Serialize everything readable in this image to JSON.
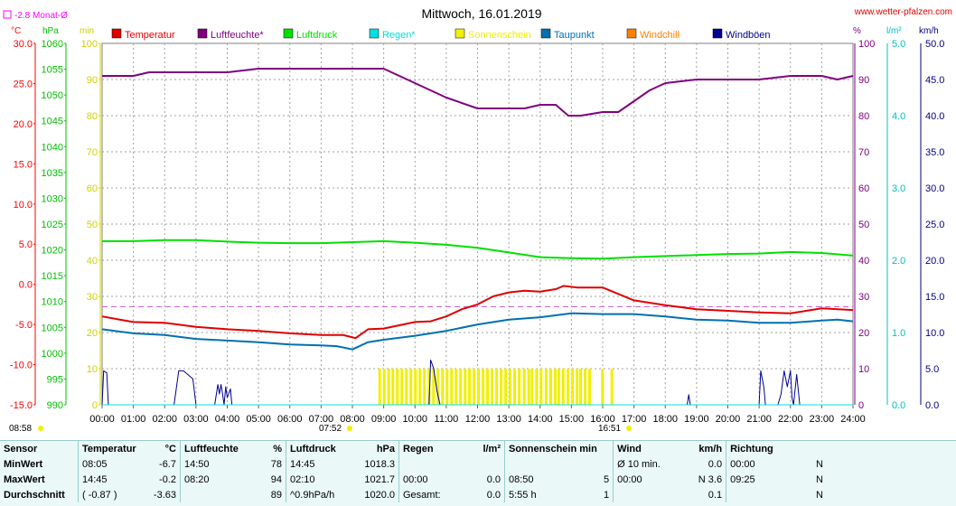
{
  "header": {
    "title": "Mittwoch, 16.01.2019",
    "site": "www.wetter-pfalzen.com",
    "monthly_avg": "-2.8 Monat-Ø",
    "left_units": [
      "°C",
      "hPa",
      "min"
    ],
    "right_units": [
      "%",
      "l/m²",
      "km/h"
    ],
    "sunrise_left": "08:58",
    "sunrise_marker": "07:52",
    "sunset_marker": "16:51"
  },
  "legend": [
    {
      "label": "Temperatur",
      "color": "#e00000"
    },
    {
      "label": "Luftfeuchte*",
      "color": "#800080"
    },
    {
      "label": "Luftdruck",
      "color": "#00e000"
    },
    {
      "label": "Regen*",
      "color": "#00e0e0"
    },
    {
      "label": "Sonnenschein",
      "color": "#f0f000"
    },
    {
      "label": "Taupunkt",
      "color": "#0070b0"
    },
    {
      "label": "Windchill",
      "color": "#ff8000"
    },
    {
      "label": "Windböen",
      "color": "#000090"
    }
  ],
  "chart_data": {
    "type": "line",
    "title": "Mittwoch, 16.01.2019",
    "x_ticks": [
      "00:00",
      "01:00",
      "02:00",
      "03:00",
      "04:00",
      "05:00",
      "06:00",
      "07:00",
      "08:00",
      "09:00",
      "10:00",
      "11:00",
      "12:00",
      "13:00",
      "14:00",
      "15:00",
      "16:00",
      "17:00",
      "18:00",
      "19:00",
      "20:00",
      "21:00",
      "22:00",
      "23:00",
      "24:00"
    ],
    "axes": {
      "temp": {
        "unit": "°C",
        "range": [
          -15,
          30
        ],
        "ticks": [
          "30.0",
          "25.0",
          "20.0",
          "15.0",
          "10.0",
          "5.0",
          "0.0",
          "-5.0",
          "-10.0",
          "-15.0"
        ],
        "color": "#ff0000"
      },
      "pressure": {
        "unit": "hPa",
        "range": [
          990,
          1060
        ],
        "ticks": [
          "1060",
          "1055",
          "1050",
          "1045",
          "1040",
          "1035",
          "1030",
          "1025",
          "1020",
          "1015",
          "1010",
          "1005",
          "1000",
          "995",
          "990"
        ],
        "color": "#00c000"
      },
      "sun": {
        "unit": "min",
        "range": [
          0,
          100
        ],
        "ticks": [
          "100",
          "90",
          "80",
          "70",
          "60",
          "50",
          "40",
          "30",
          "20",
          "10",
          "0"
        ],
        "color": "#d0d000"
      },
      "humidity": {
        "unit": "%",
        "range": [
          0,
          100
        ],
        "ticks": [
          "100",
          "90",
          "80",
          "70",
          "60",
          "50",
          "40",
          "30",
          "20",
          "10",
          "0"
        ],
        "color": "#800080"
      },
      "rain": {
        "unit": "l/m²",
        "range": [
          0,
          5
        ],
        "ticks": [
          "5.0",
          "4.0",
          "3.0",
          "2.0",
          "1.0",
          "0.0"
        ],
        "color": "#00c0c0"
      },
      "wind": {
        "unit": "km/h",
        "range": [
          0,
          50
        ],
        "ticks": [
          "50.0",
          "45.0",
          "40.0",
          "35.0",
          "30.0",
          "25.0",
          "20.0",
          "15.0",
          "10.0",
          "5.0",
          "0.0"
        ],
        "color": "#000080"
      }
    },
    "monthly_avg_temp": -2.8,
    "series": [
      {
        "name": "Luftfeuchte*",
        "axis": "humidity",
        "color": "#800080",
        "x": [
          0,
          1,
          1.5,
          2,
          3,
          4,
          5,
          6,
          7,
          8,
          9,
          10,
          10.5,
          11,
          12,
          13,
          13.5,
          14,
          14.5,
          14.9,
          15.3,
          16,
          16.5,
          17,
          17.5,
          18,
          19,
          20,
          21,
          22,
          23,
          23.5,
          24
        ],
        "y": [
          91,
          91,
          92,
          92,
          92,
          92,
          93,
          93,
          93,
          93,
          93,
          89,
          87,
          85,
          82,
          82,
          82,
          83,
          83,
          80,
          80,
          81,
          81,
          84,
          87,
          89,
          90,
          90,
          90,
          91,
          91,
          90,
          91
        ]
      },
      {
        "name": "Luftdruck",
        "axis": "pressure",
        "color": "#00e000",
        "x": [
          0,
          1,
          2,
          3,
          4,
          5,
          6,
          7,
          8,
          9,
          10,
          11,
          12,
          13,
          14,
          15,
          16,
          17,
          18,
          19,
          20,
          21,
          22,
          23,
          24
        ],
        "y": [
          1021.7,
          1021.7,
          1021.9,
          1021.9,
          1021.6,
          1021.4,
          1021.3,
          1021.3,
          1021.5,
          1021.7,
          1021.4,
          1021.0,
          1020.4,
          1019.5,
          1018.6,
          1018.4,
          1018.3,
          1018.6,
          1018.8,
          1019.0,
          1019.2,
          1019.3,
          1019.6,
          1019.4,
          1018.9
        ]
      },
      {
        "name": "Temperatur",
        "axis": "temp",
        "color": "#e00000",
        "x": [
          0,
          1,
          2,
          3,
          4,
          5,
          6,
          7,
          7.7,
          8.1,
          8.5,
          9,
          9.5,
          10,
          10.5,
          11,
          11.5,
          12,
          12.5,
          13,
          13.5,
          14,
          14.5,
          14.75,
          15.2,
          16,
          16.5,
          17,
          18,
          19,
          20,
          21,
          22,
          23,
          24
        ],
        "y": [
          -4,
          -4.7,
          -4.8,
          -5.3,
          -5.6,
          -5.8,
          -6.1,
          -6.3,
          -6.3,
          -6.7,
          -5.6,
          -5.5,
          -5.1,
          -4.7,
          -4.6,
          -4.0,
          -3.1,
          -2.5,
          -1.5,
          -1.0,
          -0.8,
          -0.9,
          -0.6,
          -0.2,
          -0.4,
          -0.4,
          -1.2,
          -2.0,
          -2.6,
          -3.1,
          -3.3,
          -3.5,
          -3.6,
          -3.0,
          -3.2
        ]
      },
      {
        "name": "Taupunkt",
        "axis": "temp",
        "color": "#0070b0",
        "x": [
          0,
          1,
          2,
          3,
          4,
          5,
          6,
          7,
          7.5,
          8,
          8.5,
          9,
          10,
          11,
          12,
          13,
          14,
          15,
          16,
          17,
          18,
          19,
          20,
          21,
          22,
          23,
          23.5,
          24
        ],
        "y": [
          -5.6,
          -6.1,
          -6.3,
          -6.8,
          -7.0,
          -7.2,
          -7.5,
          -7.6,
          -7.7,
          -8.1,
          -7.2,
          -6.9,
          -6.4,
          -5.8,
          -5.0,
          -4.4,
          -4.1,
          -3.6,
          -3.7,
          -3.7,
          -4.0,
          -4.4,
          -4.5,
          -4.8,
          -4.8,
          -4.5,
          -4.4,
          -4.6
        ]
      },
      {
        "name": "Windböen",
        "axis": "wind",
        "color": "#000090",
        "x": [
          0,
          0.05,
          0.15,
          0.2,
          0.3,
          2.3,
          2.45,
          2.6,
          2.9,
          3.0,
          3.1,
          3.6,
          3.7,
          3.75,
          3.8,
          3.85,
          3.9,
          3.95,
          4.0,
          4.1,
          4.15,
          10.45,
          10.5,
          10.6,
          10.7,
          10.8,
          18.7,
          18.75,
          18.8,
          21.0,
          21.05,
          21.15,
          21.2,
          21.6,
          21.7,
          21.8,
          21.9,
          22.0,
          22.05,
          22.1,
          22.2,
          22.3
        ],
        "y": [
          0,
          4.7,
          4.4,
          0,
          0,
          0,
          4.7,
          4.7,
          3.6,
          0,
          0,
          0,
          2.8,
          1.5,
          2.8,
          1.5,
          0,
          2.5,
          1.0,
          2.2,
          0,
          0,
          6.2,
          5.0,
          2.0,
          0,
          0,
          1.4,
          0,
          0,
          4.7,
          2.5,
          0,
          0,
          1.5,
          4.7,
          2.5,
          4.7,
          1.0,
          0,
          4.2,
          0
        ]
      },
      {
        "name": "Regen*",
        "axis": "rain",
        "color": "#00e0e0",
        "x": [
          0,
          24
        ],
        "y": [
          0,
          0
        ]
      }
    ],
    "sunshine_intervals": [
      [
        8.83,
        9.17
      ],
      [
        9.25,
        11.6
      ],
      [
        11.7,
        13.3
      ],
      [
        13.45,
        13.6
      ],
      [
        13.7,
        14.0
      ],
      [
        14.15,
        14.45
      ],
      [
        14.55,
        14.75
      ],
      [
        14.85,
        15.25
      ],
      [
        15.25,
        15.6
      ],
      [
        15.95,
        16.05
      ],
      [
        16.25,
        16.3
      ]
    ]
  },
  "stats": {
    "headers": [
      {
        "name": "Sensor",
        "unit": ""
      },
      {
        "name": "Temperatur",
        "unit": "°C"
      },
      {
        "name": "Luftfeuchte",
        "unit": "%"
      },
      {
        "name": "Luftdruck",
        "unit": "hPa"
      },
      {
        "name": "Regen",
        "unit": "l/m²"
      },
      {
        "name": "Sonnenschein min",
        "unit": ""
      },
      {
        "name": "Wind",
        "unit": "km/h"
      },
      {
        "name": "Richtung",
        "unit": ""
      }
    ],
    "rows": [
      {
        "label": "MinWert",
        "cells": [
          "08:05",
          "-6.7",
          "14:50",
          "78",
          "14:45",
          "1018.3",
          "",
          "",
          "",
          "",
          "Ø 10 min.",
          "0.0",
          "00:00",
          "N"
        ]
      },
      {
        "label": "MaxWert",
        "cells": [
          "14:45",
          "-0.2",
          "08:20",
          "94",
          "02:10",
          "1021.7",
          "00:00",
          "0.0",
          "08:50",
          "5",
          "00:00",
          "N 3.6",
          "09:25",
          "N"
        ]
      },
      {
        "label": "Durchschnitt",
        "cells": [
          "( -0.87 )",
          "-3.63",
          "",
          "89",
          "^0.9hPa/h",
          "1020.0",
          "Gesamt:",
          "0.0",
          "5:55 h",
          "1",
          "",
          "0.1",
          "",
          "N"
        ]
      }
    ]
  }
}
